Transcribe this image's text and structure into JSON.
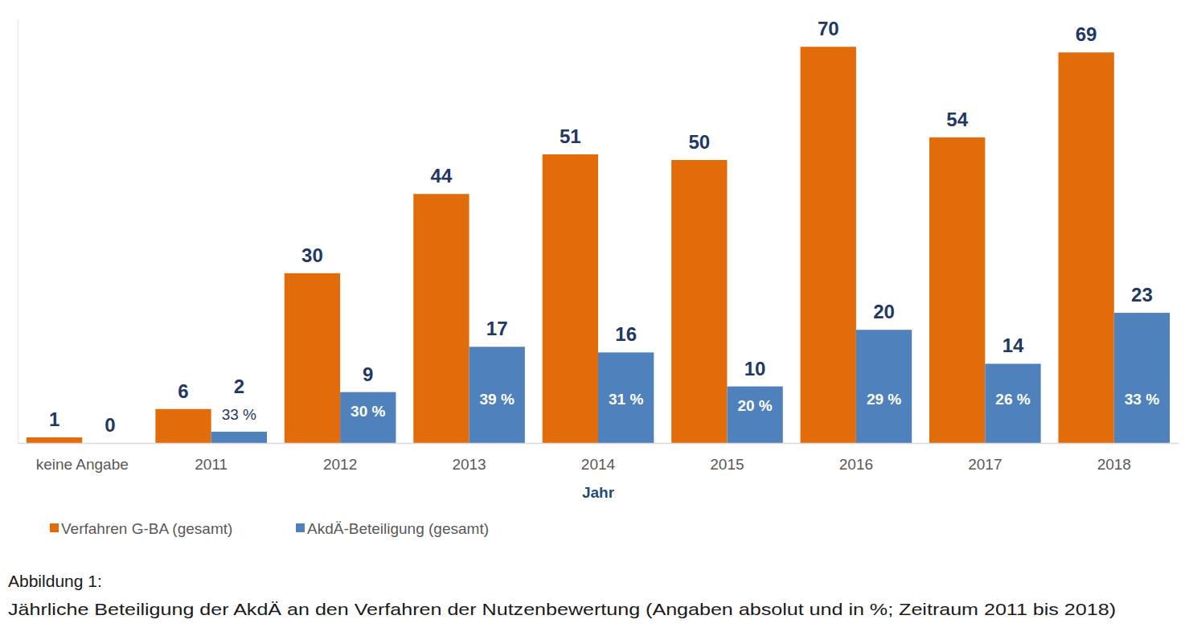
{
  "chart_data": {
    "type": "bar",
    "title": "Abbildung 1:",
    "subtitle": "Jährliche Beteiligung der AkdÄ an den Verfahren der Nutzenbewertung (Angaben absolut und in %; Zeitraum 2011 bis 2018)",
    "x_label": "Jahr",
    "categories": [
      "keine Angabe",
      "2011",
      "2012",
      "2013",
      "2014",
      "2015",
      "2016",
      "2017",
      "2018"
    ],
    "series": [
      {
        "name": "Verfahren G-BA (gesamt)",
        "color": "#e36c0a",
        "values": [
          1,
          6,
          30,
          44,
          51,
          50,
          70,
          54,
          69
        ]
      },
      {
        "name": "AkdÄ-Beteiligung (gesamt)",
        "color": "#4f81bd",
        "values": [
          0,
          2,
          9,
          17,
          16,
          10,
          20,
          14,
          23
        ],
        "percent_labels": [
          null,
          "33 %",
          "30 %",
          "39 %",
          "31 %",
          "20 %",
          "29 %",
          "26 %",
          "33 %"
        ]
      }
    ],
    "ylim": [
      0,
      75
    ],
    "yticks": [],
    "grid": false,
    "legend": "bottom",
    "data_labels": true,
    "tick_labels": "x"
  }
}
